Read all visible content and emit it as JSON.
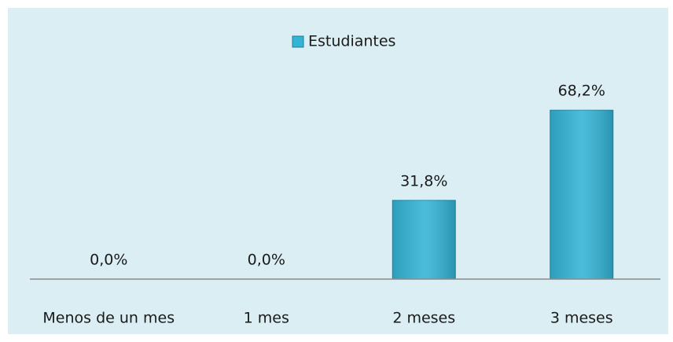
{
  "chart_data": {
    "type": "bar",
    "categories": [
      "Menos de un mes",
      "1 mes",
      "2 meses",
      "3 meses"
    ],
    "series": [
      {
        "name": "Estudiantes",
        "color": "#33b4d6",
        "values": [
          0,
          0,
          31.8,
          68.2
        ],
        "value_labels": [
          "0,0%",
          "0,0%",
          "31,8%",
          "68,2%"
        ]
      }
    ],
    "ylim": [
      0,
      80
    ],
    "legend": "top"
  }
}
